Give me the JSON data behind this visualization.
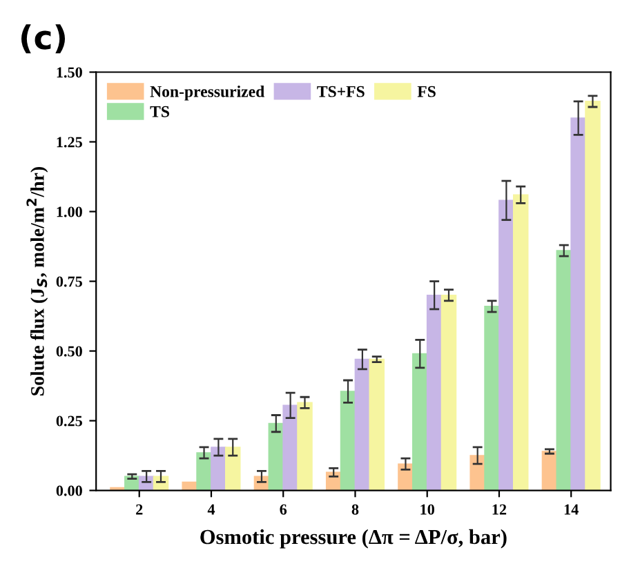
{
  "chart_data": {
    "type": "bar",
    "title": "(c)",
    "xlabel": "Osmotic pressure (Δπ = ΔP/σ, bar)",
    "ylabel": "Solute flux (J$_{S}$, mole/m$^{2}$/hr)",
    "categories": [
      "2",
      "4",
      "6",
      "8",
      "10",
      "12",
      "14"
    ],
    "series": [
      {
        "name": "Non-pressurized",
        "color": "#fdc38f",
        "values": [
          0.01,
          0.03,
          0.05,
          0.065,
          0.095,
          0.125,
          0.14
        ],
        "errors": [
          null,
          null,
          0.02,
          0.015,
          0.02,
          0.03,
          0.008
        ]
      },
      {
        "name": "TS",
        "color": "#9fe0a2",
        "values": [
          0.05,
          0.135,
          0.24,
          0.355,
          0.49,
          0.66,
          0.86
        ],
        "errors": [
          0.008,
          0.02,
          0.03,
          0.04,
          0.05,
          0.02,
          0.02
        ]
      },
      {
        "name": "TS+FS",
        "color": "#c7b6e6",
        "values": [
          0.05,
          0.155,
          0.305,
          0.47,
          0.7,
          1.04,
          1.335
        ],
        "errors": [
          0.02,
          0.03,
          0.045,
          0.035,
          0.05,
          0.07,
          0.06
        ]
      },
      {
        "name": "FS",
        "color": "#f6f5a0",
        "values": [
          0.05,
          0.155,
          0.315,
          0.47,
          0.7,
          1.06,
          1.395
        ],
        "errors": [
          0.02,
          0.03,
          0.02,
          0.01,
          0.02,
          0.03,
          0.02
        ]
      }
    ],
    "ylim": [
      0,
      1.5
    ],
    "yticks": [
      {
        "value": 0,
        "label": "0.00"
      },
      {
        "value": 0.25,
        "label": "0.25"
      },
      {
        "value": 0.5,
        "label": "0.50"
      },
      {
        "value": 0.75,
        "label": "0.75"
      },
      {
        "value": 1.0,
        "label": "1.00"
      },
      {
        "value": 1.25,
        "label": "1.25"
      },
      {
        "value": 1.5,
        "label": "1.50"
      }
    ],
    "legend": "top left",
    "grid": false
  }
}
